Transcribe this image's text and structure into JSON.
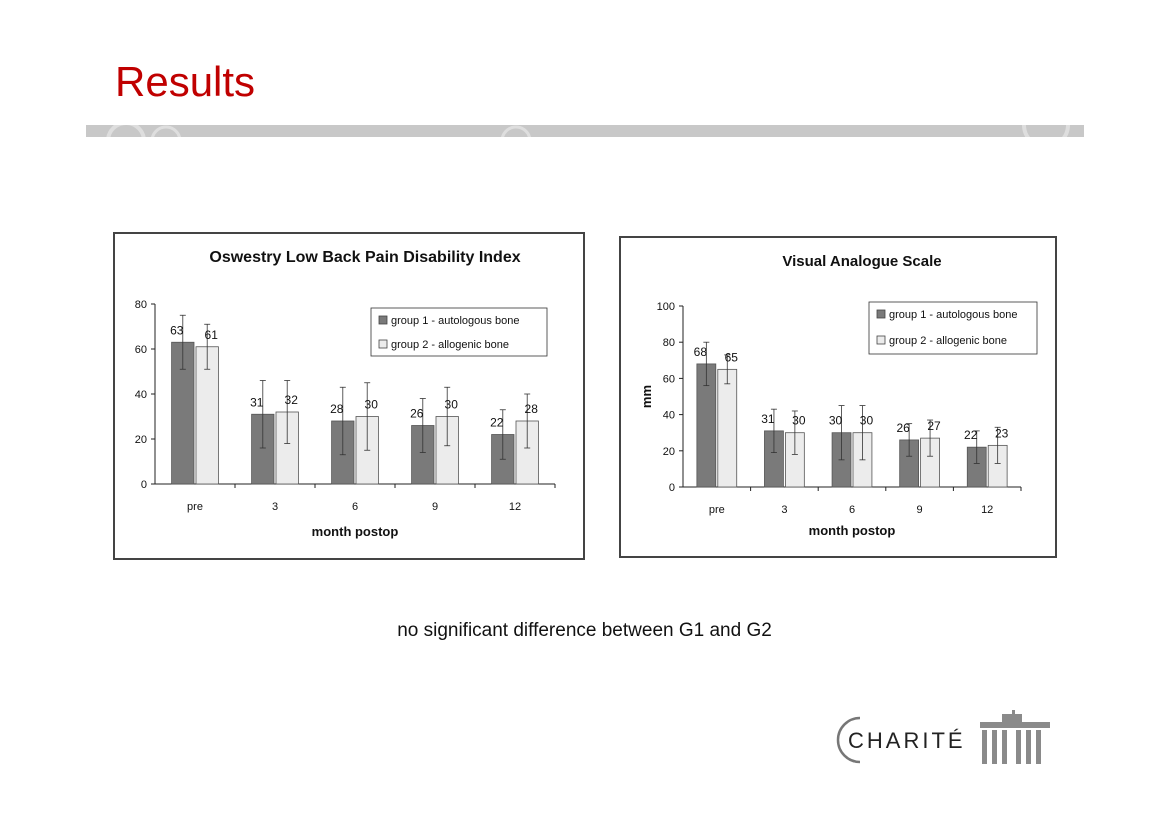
{
  "slide": {
    "title": "Results",
    "caption": "no significant difference between G1 and G2",
    "logo_text": "CHARITÉ"
  },
  "colors": {
    "title": "#c00000",
    "group1": "#7a7a7a",
    "group2": "#ececec"
  },
  "chart_data": [
    {
      "type": "bar",
      "title": "Oswestry Low Back Pain Disability Index",
      "xlabel": "month postop",
      "ylabel": "",
      "ylim": [
        0,
        80
      ],
      "yticks": [
        0,
        20,
        40,
        60,
        80
      ],
      "categories": [
        "pre",
        "3",
        "6",
        "9",
        "12"
      ],
      "legend_position": "top-right",
      "series": [
        {
          "name": "group 1 - autologous bone",
          "values": [
            63,
            31,
            28,
            26,
            22
          ],
          "errors": [
            12,
            15,
            15,
            12,
            11
          ]
        },
        {
          "name": "group 2 - allogenic bone",
          "values": [
            61,
            32,
            30,
            30,
            28
          ],
          "errors": [
            10,
            14,
            15,
            13,
            12
          ]
        }
      ],
      "labels": [
        [
          "63",
          "31",
          "28",
          "26",
          "22"
        ],
        [
          "61",
          "32",
          "30",
          "30",
          "28"
        ]
      ]
    },
    {
      "type": "bar",
      "title": "Visual Analogue Scale",
      "xlabel": "month postop",
      "ylabel": "mm",
      "ylim": [
        0,
        100
      ],
      "yticks": [
        0,
        20,
        40,
        60,
        80,
        100
      ],
      "categories": [
        "pre",
        "3",
        "6",
        "9",
        "12"
      ],
      "legend_position": "top-right",
      "series": [
        {
          "name": "group 1 - autologous bone",
          "values": [
            68,
            31,
            30,
            26,
            22
          ],
          "errors": [
            12,
            12,
            15,
            9,
            9
          ]
        },
        {
          "name": "group 2 - allogenic bone",
          "values": [
            65,
            30,
            30,
            27,
            23
          ],
          "errors": [
            8,
            12,
            15,
            10,
            10
          ]
        }
      ],
      "labels": [
        [
          "68",
          "31",
          "30",
          "26",
          "22"
        ],
        [
          "65",
          "30",
          "30",
          "27",
          "23"
        ]
      ]
    }
  ]
}
